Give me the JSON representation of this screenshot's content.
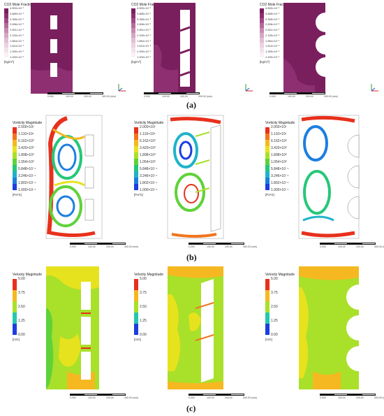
{
  "row_a": {
    "caption": "(a)",
    "legend_title": "CO2 Mole Fraction",
    "unit": "[kg/m³]",
    "ticks": [
      "4.500×10⁻¹",
      "3.885×10⁻¹",
      "3.355×10⁻¹",
      "2.896×10⁻¹",
      "2.501×10⁻¹",
      "2.159×10⁻¹",
      "1.864×10⁻¹",
      "1.610×10⁻¹",
      "1.390×10⁻¹",
      "1.200×10⁻¹"
    ],
    "colors": [
      "#7a1f5e",
      "#8e2f72",
      "#a24a86",
      "#b76a9c",
      "#c98ab2",
      "#d7a6c4",
      "#e2bed3",
      "#ecd2e1",
      "#f3e2ec",
      "#faf1f6"
    ]
  },
  "row_b": {
    "caption": "(b)",
    "legend_title": "Vorticity Magnitude",
    "unit": "[Pa*S]",
    "ticks": [
      "2.000×10¹",
      "1.110×10¹",
      "6.162×10⁰",
      "3.420×10⁰",
      "1.898×10⁰",
      "1.054×10⁰",
      "5.848×10⁻¹",
      "3.246×10⁻¹",
      "1.802×10⁻¹",
      "1.000×10⁻¹"
    ],
    "colors": [
      "#e8301c",
      "#f2751e",
      "#f6b820",
      "#e6e21e",
      "#a9e02a",
      "#5fd23a",
      "#26c77a",
      "#1fb3c9",
      "#1c7fe0",
      "#1c3ee0"
    ]
  },
  "row_c": {
    "caption": "(c)",
    "legend_title": "Velocity Magnitude",
    "unit": "[m/s]",
    "ticks": [
      "5.00",
      "3.75",
      "2.50",
      "1.25",
      "0.00"
    ],
    "colors": [
      "#e8301c",
      "#f6b820",
      "#a9e02a",
      "#26c7b0",
      "#1c3ee0"
    ]
  },
  "scale": {
    "labels": [
      "0.000",
      "100.00",
      "200.00",
      "300.00 (mm)"
    ]
  }
}
